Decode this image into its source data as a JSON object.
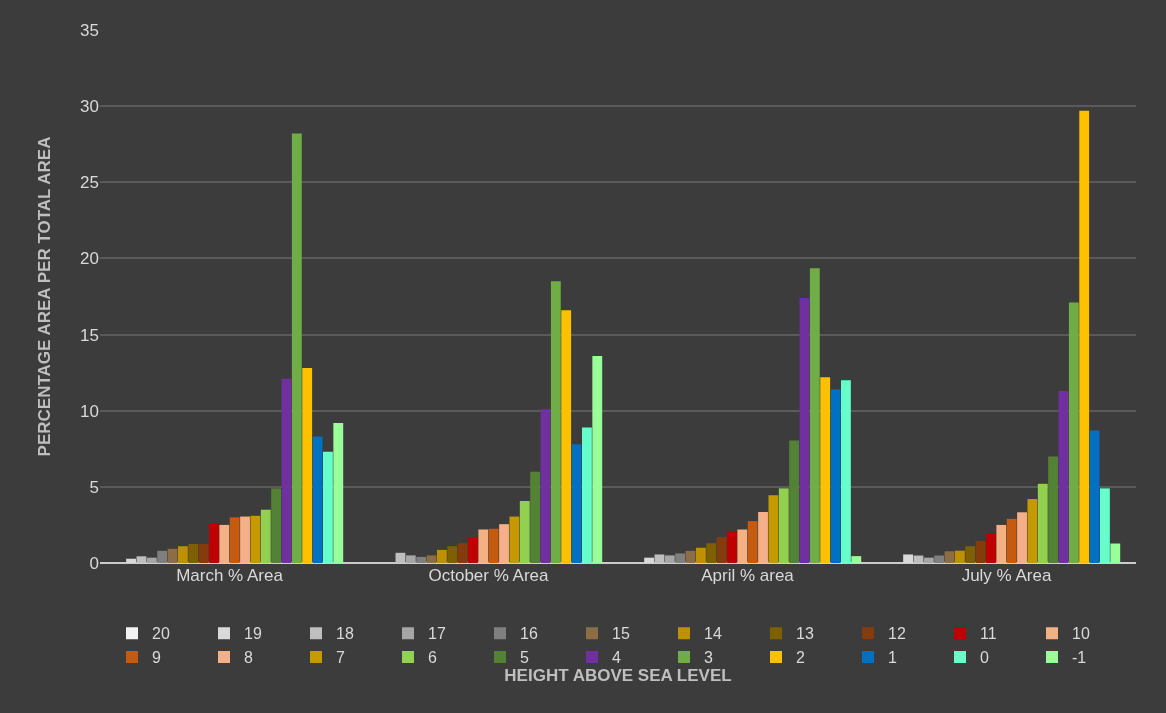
{
  "chart_data": {
    "type": "bar",
    "xlabel": "HEIGHT ABOVE SEA LEVEL",
    "ylabel": "PERCENTAGE AREA PER TOTAL AREA",
    "categories": [
      "March % Area",
      "October % Area",
      "April % area",
      "July % Area"
    ],
    "ylim": [
      0,
      35
    ],
    "yticks": [
      0,
      5,
      10,
      15,
      20,
      25,
      30,
      35
    ],
    "grid": "y",
    "legend": "bottom",
    "series": [
      {
        "name": "20",
        "color": "#f2f2f2",
        "values": [
          0,
          0,
          0,
          0
        ]
      },
      {
        "name": "19",
        "color": "#d9d9d9",
        "values": [
          0.28,
          0,
          0.35,
          0.56
        ]
      },
      {
        "name": "18",
        "color": "#bfbfbf",
        "values": [
          0.44,
          0.67,
          0.56,
          0.49
        ]
      },
      {
        "name": "17",
        "color": "#a6a6a6",
        "values": [
          0.35,
          0.5,
          0.5,
          0.35
        ]
      },
      {
        "name": "16",
        "color": "#7f7f7f",
        "values": [
          0.8,
          0.4,
          0.63,
          0.49
        ]
      },
      {
        "name": "15",
        "color": "#8c6d46",
        "values": [
          0.93,
          0.5,
          0.8,
          0.77
        ]
      },
      {
        "name": "14",
        "color": "#bf9000",
        "values": [
          1.1,
          0.86,
          1.0,
          0.81
        ]
      },
      {
        "name": "13",
        "color": "#7f6000",
        "values": [
          1.25,
          1.1,
          1.3,
          1.1
        ]
      },
      {
        "name": "12",
        "color": "#843c0c",
        "values": [
          1.25,
          1.3,
          1.7,
          1.45
        ]
      },
      {
        "name": "11",
        "color": "#c00000",
        "values": [
          2.6,
          1.7,
          2.1,
          1.93
        ]
      },
      {
        "name": "10",
        "color": "#f4b183",
        "values": [
          2.5,
          2.2,
          2.2,
          2.5
        ]
      },
      {
        "name": "9",
        "color": "#c55a11",
        "values": [
          3.0,
          2.25,
          2.75,
          2.9
        ]
      },
      {
        "name": "8",
        "color": "#f5b08a",
        "values": [
          3.05,
          2.55,
          3.35,
          3.33
        ]
      },
      {
        "name": "7",
        "color": "#c59a00",
        "values": [
          3.1,
          3.05,
          4.45,
          4.2
        ]
      },
      {
        "name": "6",
        "color": "#92d050",
        "values": [
          3.5,
          4.07,
          4.9,
          5.2
        ]
      },
      {
        "name": "5",
        "color": "#548235",
        "values": [
          4.9,
          6.0,
          8.05,
          7.0
        ]
      },
      {
        "name": "4",
        "color": "#7030a0",
        "values": [
          12.1,
          10.1,
          17.4,
          11.3
        ]
      },
      {
        "name": "3",
        "color": "#70ad47",
        "values": [
          28.2,
          18.5,
          19.35,
          17.1
        ]
      },
      {
        "name": "2",
        "color": "#ffc000",
        "values": [
          12.8,
          16.6,
          12.2,
          29.7
        ]
      },
      {
        "name": "1",
        "color": "#0070c0",
        "values": [
          8.3,
          7.8,
          11.4,
          8.7
        ]
      },
      {
        "name": "0",
        "color": "#66ffcc",
        "values": [
          7.3,
          8.9,
          12.0,
          4.9
        ]
      },
      {
        "name": "-1",
        "color": "#99ff99",
        "values": [
          9.2,
          13.6,
          0.45,
          1.28
        ]
      }
    ]
  }
}
